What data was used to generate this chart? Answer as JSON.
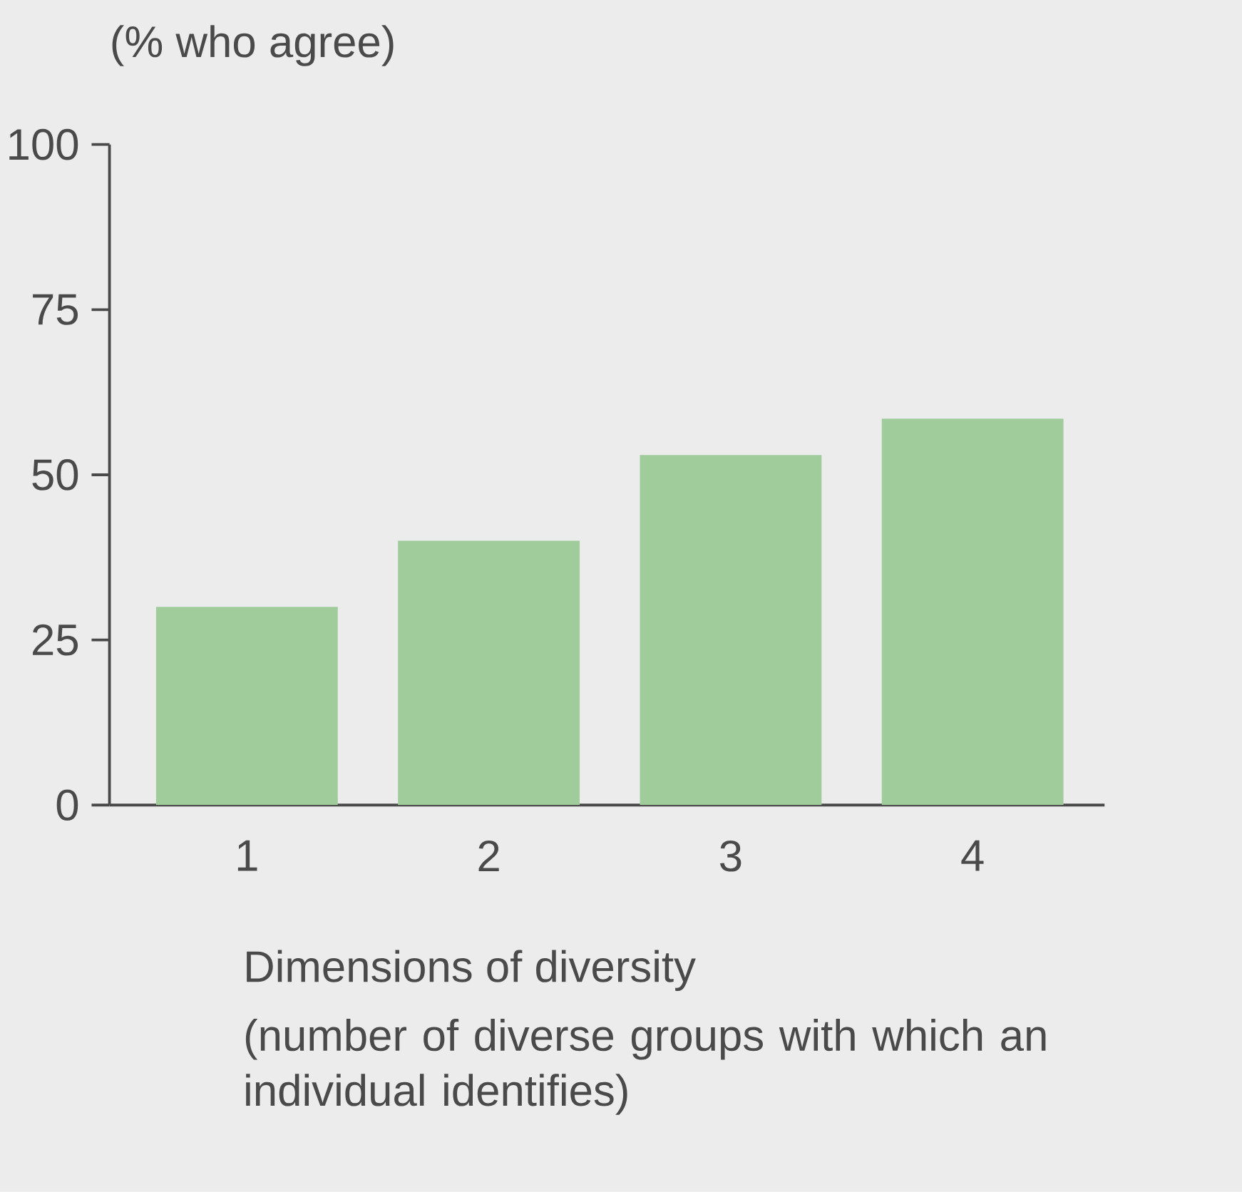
{
  "chart_data": {
    "type": "bar",
    "ylabel": "(% who agree)",
    "xlabel": "Dimensions of diversity",
    "annotations": [
      "(number of diverse groups with which an individual identifies)"
    ],
    "categories": [
      "1",
      "2",
      "3",
      "4"
    ],
    "values": [
      30,
      40,
      53,
      58.5
    ],
    "color": "#a0cc9c",
    "ylim": [
      0,
      100
    ],
    "yticks": [
      0,
      25,
      50,
      75,
      100
    ]
  }
}
